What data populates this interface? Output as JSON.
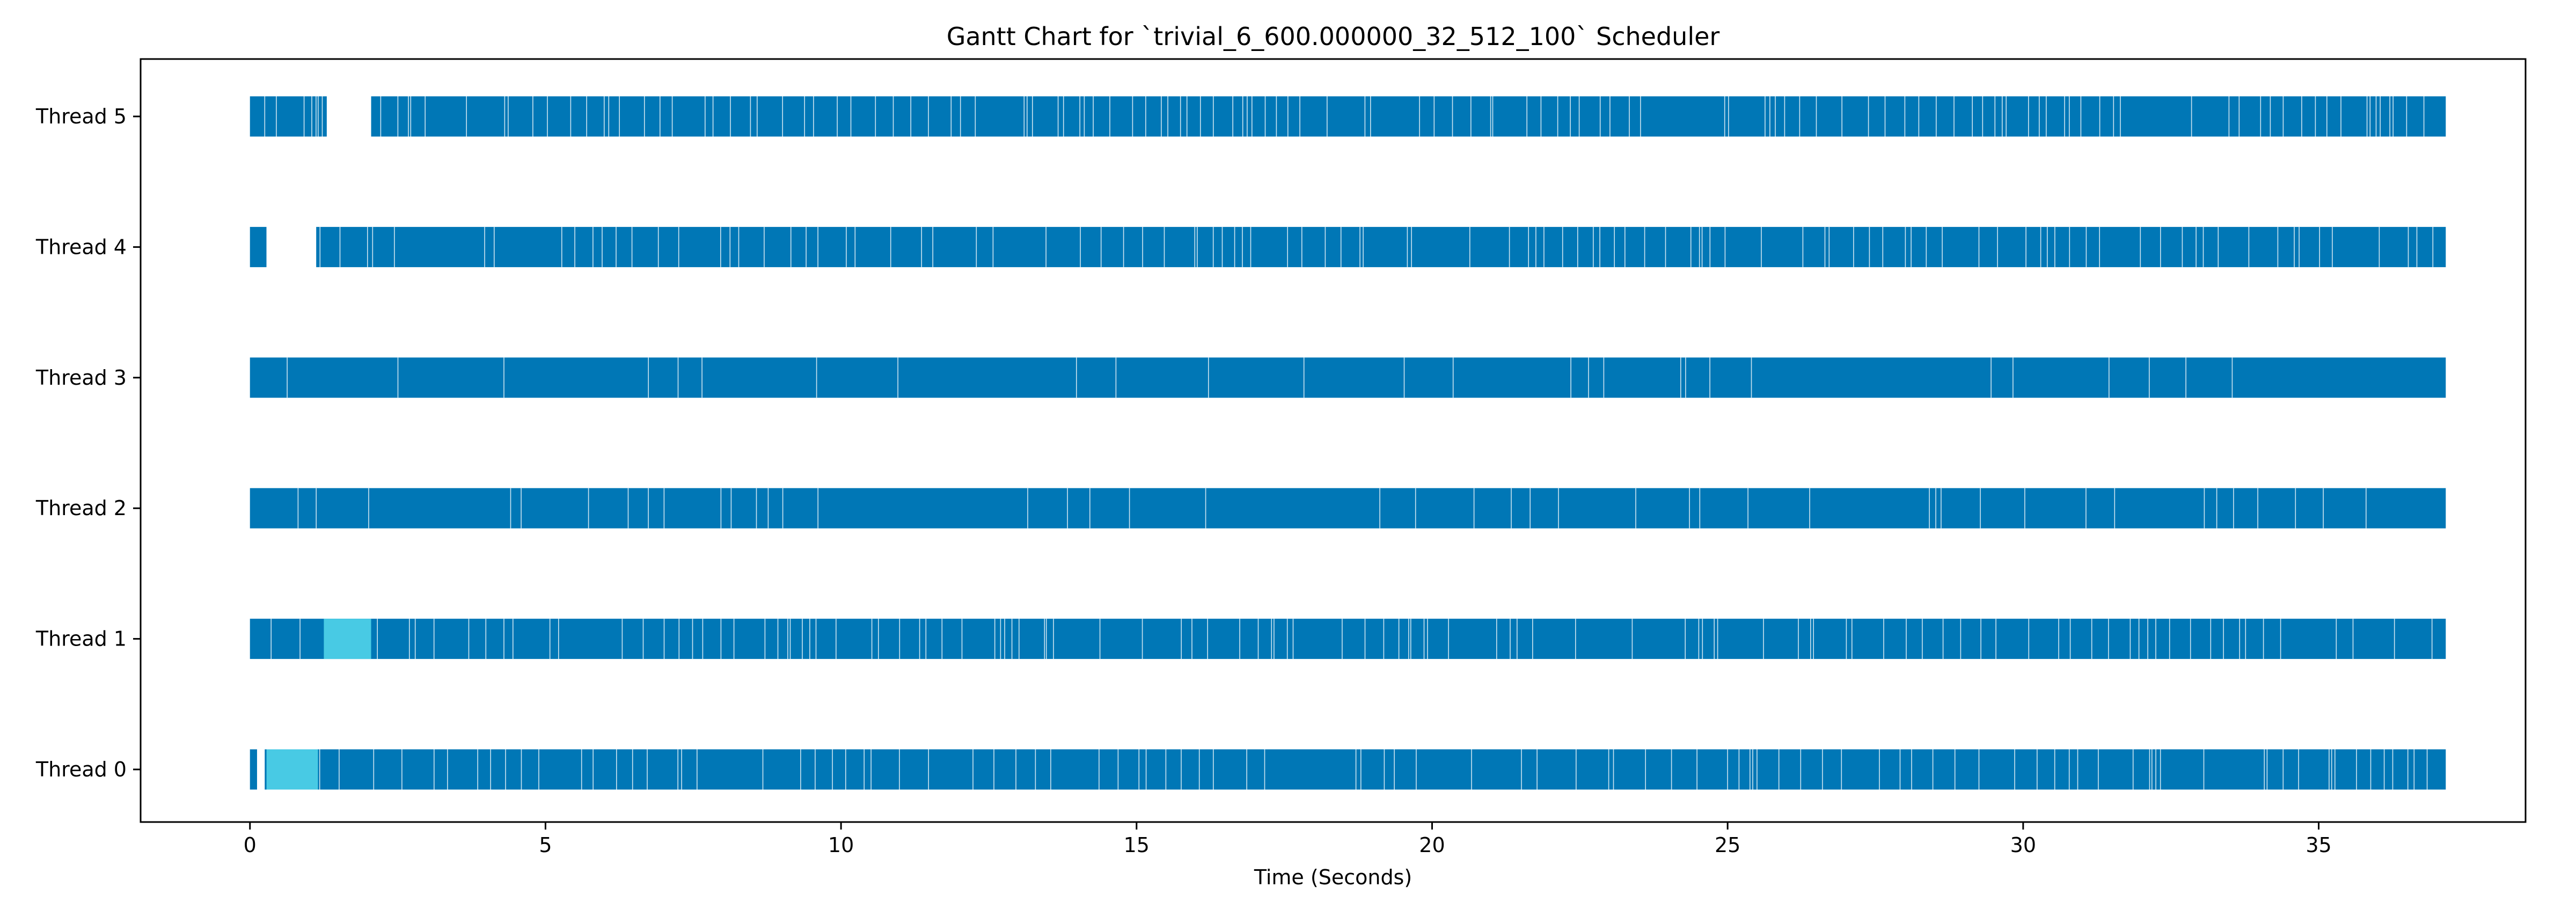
{
  "chart_data": {
    "type": "gantt",
    "title": "Gantt Chart for `trivial_6_600.000000_32_512_100` Scheduler",
    "xlabel": "Time (Seconds)",
    "ylabel": "",
    "xlim": [
      -1.85,
      38.5
    ],
    "x_ticks": [
      0,
      5,
      10,
      15,
      20,
      25,
      30,
      35
    ],
    "x_tick_labels": [
      "0",
      "5",
      "10",
      "15",
      "20",
      "25",
      "30",
      "35"
    ],
    "grid": false,
    "colors": {
      "busy": "#0077b6",
      "light": "#48cae4",
      "gap": "#ffffff"
    },
    "threads": [
      {
        "label": "Thread 0",
        "busy_spans": [
          [
            0.0,
            37.15
          ]
        ],
        "light_spans": [
          [
            0.28,
            1.15
          ]
        ],
        "idle_spans": [
          [
            0.12,
            0.25
          ]
        ],
        "white_line_density": 0.55
      },
      {
        "label": "Thread 1",
        "busy_spans": [
          [
            0.0,
            37.15
          ]
        ],
        "light_spans": [
          [
            1.25,
            2.05
          ]
        ],
        "idle_spans": [],
        "white_line_density": 0.6
      },
      {
        "label": "Thread 2",
        "busy_spans": [
          [
            0.0,
            37.15
          ]
        ],
        "light_spans": [],
        "idle_spans": [],
        "white_line_density": 0.35
      },
      {
        "label": "Thread 3",
        "busy_spans": [
          [
            0.0,
            37.15
          ]
        ],
        "light_spans": [],
        "idle_spans": [],
        "white_line_density": 0.3
      },
      {
        "label": "Thread 4",
        "busy_spans": [
          [
            0.0,
            0.28
          ],
          [
            1.12,
            37.15
          ]
        ],
        "light_spans": [],
        "idle_spans": [
          [
            0.28,
            1.12
          ]
        ],
        "white_line_density": 0.6
      },
      {
        "label": "Thread 5",
        "busy_spans": [
          [
            0.0,
            1.3
          ],
          [
            2.05,
            37.15
          ]
        ],
        "light_spans": [],
        "idle_spans": [
          [
            1.3,
            2.05
          ]
        ],
        "white_line_density": 0.65
      }
    ]
  }
}
